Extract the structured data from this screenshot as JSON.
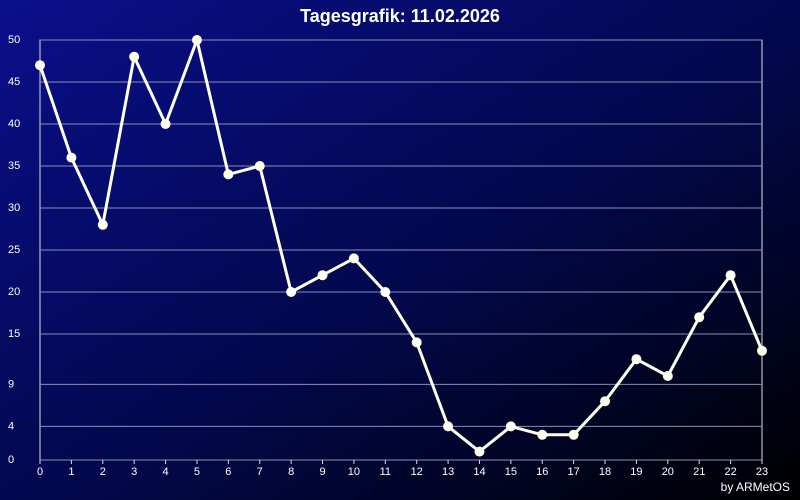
{
  "chart_data": {
    "type": "line",
    "title": "Tagesgrafik: 11.02.2026",
    "footer": "by ARMetOS",
    "x": [
      0,
      1,
      2,
      3,
      4,
      5,
      6,
      7,
      8,
      9,
      10,
      11,
      12,
      13,
      14,
      15,
      16,
      17,
      18,
      19,
      20,
      21,
      22,
      23
    ],
    "series": [
      {
        "color": "#fffff0",
        "values": [
          47,
          36,
          28,
          48,
          40,
          50,
          34,
          35,
          20,
          22,
          24,
          20,
          14,
          4,
          1,
          4,
          3,
          3,
          7,
          12,
          10,
          17,
          22,
          13
        ]
      }
    ],
    "xlim": [
      0,
      23
    ],
    "xticks": [
      0,
      1,
      2,
      3,
      4,
      5,
      6,
      7,
      8,
      9,
      10,
      11,
      12,
      13,
      14,
      15,
      16,
      17,
      18,
      19,
      20,
      21,
      22,
      23
    ],
    "ylim": [
      0,
      50
    ],
    "yticks": [
      0,
      4,
      9,
      15,
      20,
      25,
      30,
      35,
      40,
      45,
      50
    ],
    "grid": true
  }
}
